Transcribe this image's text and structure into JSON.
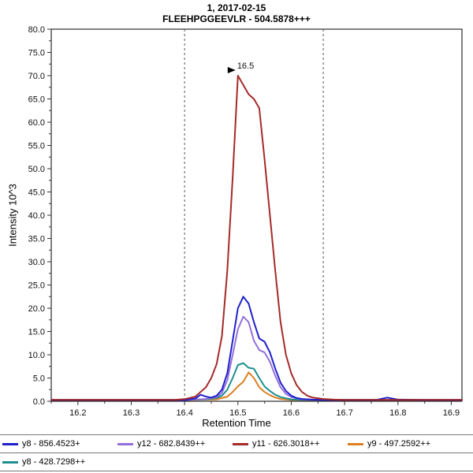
{
  "header": {
    "title_line1": "1, 2017-02-15",
    "title_line2": "FLEEHPGGEEVLR - 504.5878+++"
  },
  "chart_data": {
    "type": "line",
    "title": "1, 2017-02-15",
    "subtitle": "FLEEHPGGEEVLR - 504.5878+++",
    "xlabel": "Retention Time",
    "ylabel": "Intensity 10^3",
    "xlim": [
      16.15,
      16.92
    ],
    "ylim": [
      0,
      80
    ],
    "xticks": [
      16.2,
      16.3,
      16.4,
      16.5,
      16.6,
      16.7,
      16.8,
      16.9
    ],
    "ytick_step": 5,
    "yminor_step": 2.5,
    "xminor_step": 0.05,
    "grid": false,
    "legend_position": "bottom",
    "integration_boundaries": [
      16.4,
      16.66
    ],
    "annotation": {
      "text": "16.5",
      "x": 16.5,
      "y": 70,
      "color": "#b22222"
    },
    "series": [
      {
        "name": "y8 - 856.4523+",
        "color": "#2020cc",
        "points": [
          [
            16.15,
            0.3
          ],
          [
            16.25,
            0.3
          ],
          [
            16.35,
            0.3
          ],
          [
            16.4,
            0.3
          ],
          [
            16.42,
            0.6
          ],
          [
            16.43,
            1.4
          ],
          [
            16.44,
            1.0
          ],
          [
            16.45,
            0.8
          ],
          [
            16.46,
            1.2
          ],
          [
            16.47,
            2.5
          ],
          [
            16.48,
            6.0
          ],
          [
            16.49,
            13.0
          ],
          [
            16.5,
            20.0
          ],
          [
            16.51,
            22.5
          ],
          [
            16.52,
            21.0
          ],
          [
            16.53,
            17.0
          ],
          [
            16.54,
            13.5
          ],
          [
            16.55,
            12.8
          ],
          [
            16.56,
            10.5
          ],
          [
            16.57,
            7.0
          ],
          [
            16.58,
            4.0
          ],
          [
            16.59,
            2.2
          ],
          [
            16.6,
            1.2
          ],
          [
            16.61,
            0.7
          ],
          [
            16.62,
            0.5
          ],
          [
            16.64,
            0.35
          ],
          [
            16.66,
            0.3
          ],
          [
            16.7,
            0.3
          ],
          [
            16.76,
            0.3
          ],
          [
            16.78,
            0.8
          ],
          [
            16.8,
            0.35
          ],
          [
            16.85,
            0.3
          ],
          [
            16.92,
            0.3
          ]
        ]
      },
      {
        "name": "y12 - 682.8439++",
        "color": "#9370db",
        "points": [
          [
            16.15,
            0.25
          ],
          [
            16.35,
            0.25
          ],
          [
            16.4,
            0.25
          ],
          [
            16.44,
            0.5
          ],
          [
            16.46,
            0.9
          ],
          [
            16.47,
            1.8
          ],
          [
            16.48,
            4.5
          ],
          [
            16.49,
            10.0
          ],
          [
            16.5,
            15.5
          ],
          [
            16.51,
            18.2
          ],
          [
            16.52,
            17.0
          ],
          [
            16.53,
            13.0
          ],
          [
            16.54,
            11.0
          ],
          [
            16.55,
            10.5
          ],
          [
            16.56,
            8.5
          ],
          [
            16.57,
            5.5
          ],
          [
            16.58,
            3.0
          ],
          [
            16.59,
            1.6
          ],
          [
            16.6,
            0.9
          ],
          [
            16.62,
            0.4
          ],
          [
            16.64,
            0.3
          ],
          [
            16.7,
            0.25
          ],
          [
            16.92,
            0.25
          ]
        ]
      },
      {
        "name": "y11 - 626.3018++",
        "color": "#a52a2a",
        "points": [
          [
            16.15,
            0.3
          ],
          [
            16.3,
            0.3
          ],
          [
            16.38,
            0.3
          ],
          [
            16.4,
            0.45
          ],
          [
            16.42,
            1.0
          ],
          [
            16.44,
            3.0
          ],
          [
            16.45,
            5.0
          ],
          [
            16.46,
            8.0
          ],
          [
            16.47,
            14.0
          ],
          [
            16.48,
            28.0
          ],
          [
            16.49,
            48.0
          ],
          [
            16.5,
            70.0
          ],
          [
            16.51,
            68.0
          ],
          [
            16.52,
            66.0
          ],
          [
            16.53,
            65.0
          ],
          [
            16.54,
            63.0
          ],
          [
            16.55,
            52.0
          ],
          [
            16.56,
            40.0
          ],
          [
            16.57,
            28.0
          ],
          [
            16.58,
            17.0
          ],
          [
            16.59,
            10.0
          ],
          [
            16.6,
            6.0
          ],
          [
            16.61,
            3.5
          ],
          [
            16.62,
            2.0
          ],
          [
            16.63,
            1.2
          ],
          [
            16.64,
            0.8
          ],
          [
            16.66,
            0.5
          ],
          [
            16.68,
            0.35
          ],
          [
            16.7,
            0.3
          ],
          [
            16.8,
            0.3
          ],
          [
            16.92,
            0.3
          ]
        ]
      },
      {
        "name": "y9 - 497.2592++",
        "color": "#de7e1e",
        "points": [
          [
            16.15,
            0.25
          ],
          [
            16.4,
            0.25
          ],
          [
            16.46,
            0.4
          ],
          [
            16.48,
            1.0
          ],
          [
            16.49,
            2.0
          ],
          [
            16.5,
            3.2
          ],
          [
            16.51,
            4.2
          ],
          [
            16.52,
            6.2
          ],
          [
            16.53,
            5.0
          ],
          [
            16.54,
            3.0
          ],
          [
            16.55,
            2.0
          ],
          [
            16.56,
            1.3
          ],
          [
            16.57,
            0.8
          ],
          [
            16.58,
            0.5
          ],
          [
            16.6,
            0.3
          ],
          [
            16.64,
            0.25
          ],
          [
            16.92,
            0.25
          ]
        ]
      },
      {
        "name": "y8 - 428.7298++",
        "color": "#1d8f8f",
        "points": [
          [
            16.15,
            0.3
          ],
          [
            16.4,
            0.3
          ],
          [
            16.44,
            0.4
          ],
          [
            16.46,
            0.7
          ],
          [
            16.47,
            1.2
          ],
          [
            16.48,
            2.5
          ],
          [
            16.49,
            5.0
          ],
          [
            16.5,
            7.8
          ],
          [
            16.51,
            8.2
          ],
          [
            16.52,
            7.2
          ],
          [
            16.53,
            7.0
          ],
          [
            16.54,
            5.0
          ],
          [
            16.55,
            3.2
          ],
          [
            16.56,
            2.2
          ],
          [
            16.57,
            1.4
          ],
          [
            16.58,
            0.9
          ],
          [
            16.6,
            0.4
          ],
          [
            16.62,
            0.3
          ],
          [
            16.7,
            0.3
          ],
          [
            16.92,
            0.3
          ]
        ]
      }
    ]
  }
}
